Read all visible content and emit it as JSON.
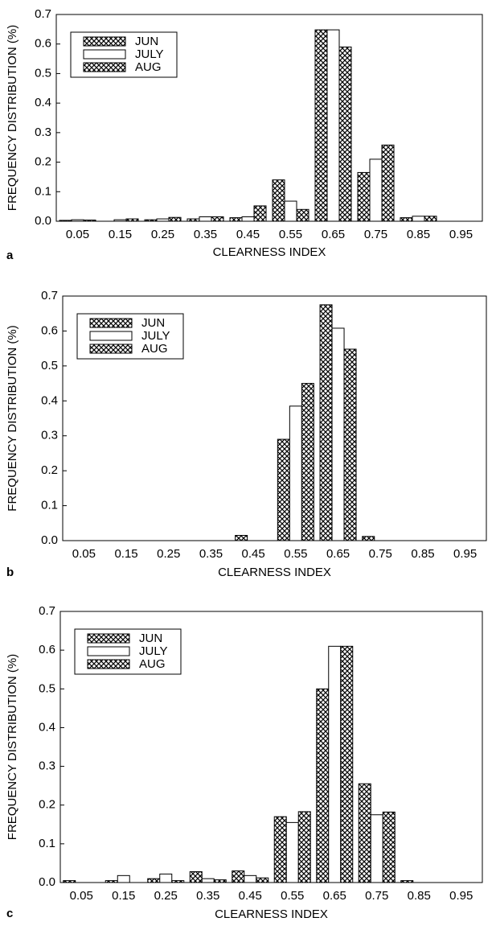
{
  "chart_data": [
    {
      "type": "bar",
      "panel_label": "a",
      "xlabel": "CLEARNESS INDEX",
      "ylabel": "FREQUENCY DISTRIBUTION (%)",
      "categories": [
        "0.05",
        "0.15",
        "0.25",
        "0.35",
        "0.45",
        "0.55",
        "0.65",
        "0.75",
        "0.85",
        "0.95"
      ],
      "series": [
        {
          "name": "JUN",
          "color": "#000000",
          "hatch": true,
          "values": [
            0.003,
            0,
            0.005,
            0.008,
            0.012,
            0.14,
            0.648,
            0.165,
            0.012,
            0
          ]
        },
        {
          "name": "JULY",
          "color": "#000000",
          "hatch": false,
          "values": [
            0.005,
            0.005,
            0.008,
            0.015,
            0.015,
            0.068,
            0.648,
            0.21,
            0.017,
            0
          ]
        },
        {
          "name": "AUG",
          "color": "#000000",
          "hatch": true,
          "values": [
            0.004,
            0.008,
            0.013,
            0.015,
            0.052,
            0.04,
            0.59,
            0.258,
            0.017,
            0
          ]
        }
      ],
      "ylim": [
        0,
        0.7
      ],
      "yticks": [
        {
          "value": 0,
          "label": "0.0"
        },
        0.1,
        0.2,
        0.3,
        0.4,
        0.5,
        0.6,
        0.7
      ],
      "legend": "upper left"
    },
    {
      "type": "bar",
      "panel_label": "b",
      "xlabel": "CLEARNESS INDEX",
      "ylabel": "FREQUENCY DISTRIBUTION (%)",
      "categories": [
        "0.05",
        "0.15",
        "0.25",
        "0.35",
        "0.45",
        "0.55",
        "0.65",
        "0.75",
        "0.85",
        "0.95"
      ],
      "series": [
        {
          "name": "JUN",
          "color": "#000000",
          "hatch": true,
          "values": [
            0,
            0,
            0,
            0,
            0.015,
            0.29,
            0.675,
            0.012,
            0,
            0
          ]
        },
        {
          "name": "JULY",
          "color": "#000000",
          "hatch": false,
          "values": [
            0,
            0,
            0,
            0,
            0,
            0.385,
            0.608,
            0,
            0,
            0
          ]
        },
        {
          "name": "AUG",
          "color": "#000000",
          "hatch": true,
          "values": [
            0,
            0,
            0,
            0,
            0,
            0.45,
            0.548,
            0,
            0,
            0
          ]
        }
      ],
      "ylim": [
        0,
        0.7
      ],
      "yticks": [
        {
          "value": 0,
          "label": "0.0"
        },
        0.1,
        0.2,
        0.3,
        0.4,
        0.5,
        0.6,
        0.7
      ],
      "legend": "upper left"
    },
    {
      "type": "bar",
      "panel_label": "c",
      "xlabel": "CLEARNESS INDEX",
      "ylabel": "FREQUENCY DISTRIBUTION (%)",
      "categories": [
        "0.05",
        "0.15",
        "0.25",
        "0.35",
        "0.45",
        "0.55",
        "0.65",
        "0.75",
        "0.85",
        "0.95"
      ],
      "series": [
        {
          "name": "JUN",
          "color": "#000000",
          "hatch": true,
          "values": [
            0.005,
            0.005,
            0.01,
            0.028,
            0.03,
            0.17,
            0.5,
            0.255,
            0.005,
            0
          ]
        },
        {
          "name": "JULY",
          "color": "#000000",
          "hatch": false,
          "values": [
            0,
            0.018,
            0.022,
            0.01,
            0.018,
            0.155,
            0.61,
            0.175,
            0,
            0
          ]
        },
        {
          "name": "AUG",
          "color": "#000000",
          "hatch": true,
          "values": [
            0,
            0,
            0.005,
            0.007,
            0.012,
            0.183,
            0.61,
            0.182,
            0,
            0
          ]
        }
      ],
      "ylim": [
        0,
        0.7
      ],
      "yticks": [
        {
          "value": 0,
          "label": "0.0"
        },
        0.1,
        0.2,
        0.3,
        0.4,
        0.5,
        0.6,
        0.7
      ],
      "legend": "upper left"
    }
  ]
}
